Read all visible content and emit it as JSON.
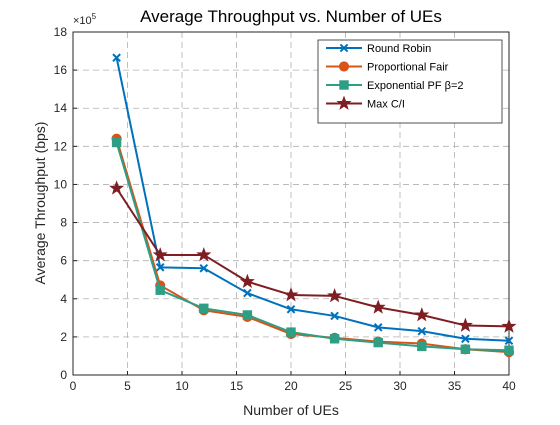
{
  "chart_data": {
    "type": "line",
    "title": "Average Throughput vs. Number of UEs",
    "xlabel": "Number of UEs",
    "ylabel": "Average Throughput (bps)",
    "y_exponent_label": "×10",
    "y_exponent_power": "5",
    "xlim": [
      0,
      40
    ],
    "ylim": [
      0,
      18
    ],
    "x_ticks": [
      0,
      5,
      10,
      15,
      20,
      25,
      30,
      35,
      40
    ],
    "y_ticks": [
      0,
      2,
      4,
      6,
      8,
      10,
      12,
      14,
      16,
      18
    ],
    "grid": true,
    "legend_position": "top-right",
    "x": [
      4,
      8,
      12,
      16,
      20,
      24,
      28,
      32,
      36,
      40
    ],
    "series": [
      {
        "name": "Round Robin",
        "color": "#0072BD",
        "marker": "x",
        "values": [
          16.65,
          5.65,
          5.6,
          4.3,
          3.45,
          3.1,
          2.5,
          2.3,
          1.9,
          1.8
        ]
      },
      {
        "name": "Proportional Fair",
        "color": "#D95319",
        "marker": "circle",
        "values": [
          12.4,
          4.7,
          3.4,
          3.05,
          2.15,
          1.95,
          1.75,
          1.65,
          1.35,
          1.2
        ]
      },
      {
        "name": "Exponential PF β=2",
        "color": "#2E9E84",
        "marker": "square",
        "values": [
          12.2,
          4.45,
          3.5,
          3.15,
          2.25,
          1.9,
          1.7,
          1.5,
          1.35,
          1.3
        ]
      },
      {
        "name": "Max C/I",
        "color": "#7E1E22",
        "marker": "star",
        "values": [
          9.8,
          6.3,
          6.3,
          4.9,
          4.2,
          4.15,
          3.55,
          3.15,
          2.6,
          2.55
        ]
      }
    ]
  }
}
